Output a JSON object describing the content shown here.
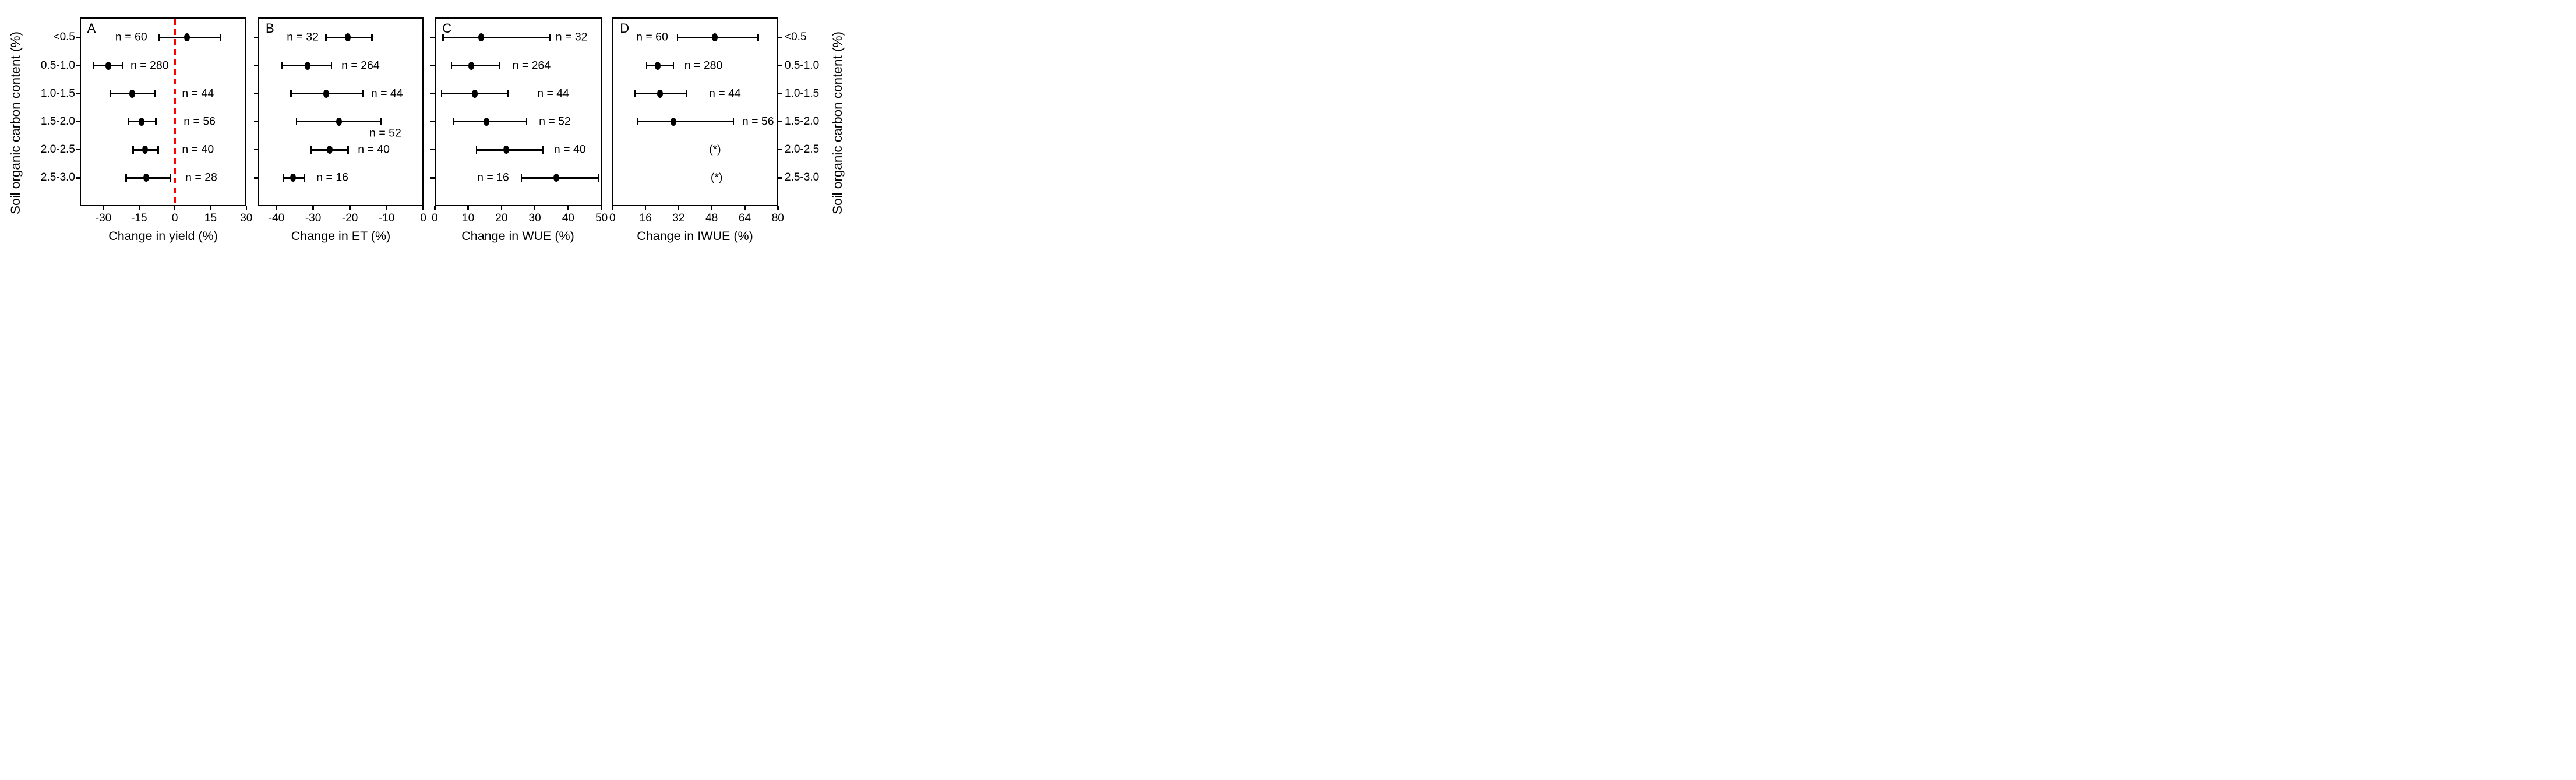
{
  "figure": {
    "y_axis_title_left": "Soil organic carbon content (%)",
    "y_axis_title_right": "Soil organic carbon content (%)",
    "categories": [
      "<0.5",
      "0.5-1.0",
      "1.0-1.5",
      "1.5-2.0",
      "2.0-2.5",
      "2.5-3.0"
    ],
    "colors": {
      "marker": "#000000",
      "text": "#000000",
      "frame": "#000000",
      "zero_line": "#ff0000",
      "background": "#ffffff"
    }
  },
  "chart_data": [
    {
      "type": "scatter",
      "panel": "A",
      "xlabel": "Change in yield (%)",
      "xlim": [
        -40,
        30
      ],
      "xticks": [
        -30,
        -15,
        0,
        15,
        30
      ],
      "zero_line": true,
      "categories": [
        "<0.5",
        "0.5-1.0",
        "1.0-1.5",
        "1.5-2.0",
        "2.0-2.5",
        "2.5-3.0"
      ],
      "points": [
        {
          "category": "<0.5",
          "n_label": "n = 60",
          "value": 5,
          "ci_low": -6.5,
          "ci_high": 19,
          "label_frac": 0.31
        },
        {
          "category": "0.5-1.0",
          "n_label": "n = 280",
          "value": -28,
          "ci_low": -34,
          "ci_high": -22,
          "label_frac": 0.42
        },
        {
          "category": "1.0-1.5",
          "n_label": "n = 44",
          "value": -18,
          "ci_low": -27,
          "ci_high": -8.5,
          "label_frac": 0.71
        },
        {
          "category": "1.5-2.0",
          "n_label": "n = 56",
          "value": -14,
          "ci_low": -19.5,
          "ci_high": -8,
          "label_frac": 0.72
        },
        {
          "category": "2.0-2.5",
          "n_label": "n = 40",
          "value": -12.5,
          "ci_low": -17.5,
          "ci_high": -7,
          "label_frac": 0.71
        },
        {
          "category": "2.5-3.0",
          "n_label": "n = 28",
          "value": -12,
          "ci_low": -20.5,
          "ci_high": -2,
          "label_frac": 0.73
        }
      ]
    },
    {
      "type": "scatter",
      "panel": "B",
      "xlabel": "Change in ET (%)",
      "xlim": [
        -45,
        0
      ],
      "xticks": [
        -40,
        -30,
        -20,
        -10,
        0
      ],
      "zero_line": false,
      "categories": [
        "<0.5",
        "0.5-1.0",
        "1.0-1.5",
        "1.5-2.0",
        "2.0-2.5",
        "2.5-3.0"
      ],
      "points": [
        {
          "category": "<0.5",
          "n_label": "n = 32",
          "value": -20.5,
          "ci_low": -26.5,
          "ci_high": -14,
          "label_frac": 0.27
        },
        {
          "category": "0.5-1.0",
          "n_label": "n = 264",
          "value": -31.5,
          "ci_low": -38.5,
          "ci_high": -25,
          "label_frac": 0.62
        },
        {
          "category": "1.0-1.5",
          "n_label": "n = 44",
          "value": -26.5,
          "ci_low": -36,
          "ci_high": -16.5,
          "label_frac": 0.78
        },
        {
          "category": "1.5-2.0",
          "n_label": "n = 52",
          "value": -23,
          "ci_low": -34.5,
          "ci_high": -11.5,
          "label_frac": 0.77,
          "label_dy_frac": 0.42
        },
        {
          "category": "2.0-2.5",
          "n_label": "n = 40",
          "value": -25.5,
          "ci_low": -30.5,
          "ci_high": -20.5,
          "label_frac": 0.7
        },
        {
          "category": "2.5-3.0",
          "n_label": "n = 16",
          "value": -35.5,
          "ci_low": -38,
          "ci_high": -32.5,
          "label_frac": 0.45
        }
      ]
    },
    {
      "type": "scatter",
      "panel": "C",
      "xlabel": "Change in WUE (%)",
      "xlim": [
        0,
        50
      ],
      "xticks": [
        0,
        10,
        20,
        30,
        40,
        50
      ],
      "zero_line": false,
      "categories": [
        "<0.5",
        "0.5-1.0",
        "1.0-1.5",
        "1.5-2.0",
        "2.0-2.5",
        "2.5-3.0"
      ],
      "points": [
        {
          "category": "<0.5",
          "n_label": "n = 32",
          "value": 14,
          "ci_low": 2.5,
          "ci_high": 34.5,
          "label_frac": 0.82
        },
        {
          "category": "0.5-1.0",
          "n_label": "n = 264",
          "value": 11,
          "ci_low": 5,
          "ci_high": 19.5,
          "label_frac": 0.58
        },
        {
          "category": "1.0-1.5",
          "n_label": "n = 44",
          "value": 12,
          "ci_low": 2,
          "ci_high": 22,
          "label_frac": 0.71
        },
        {
          "category": "1.5-2.0",
          "n_label": "n = 52",
          "value": 15.5,
          "ci_low": 5.5,
          "ci_high": 27.5,
          "label_frac": 0.72
        },
        {
          "category": "2.0-2.5",
          "n_label": "n = 40",
          "value": 21.5,
          "ci_low": 12.5,
          "ci_high": 32.5,
          "label_frac": 0.81
        },
        {
          "category": "2.5-3.0",
          "n_label": "n = 16",
          "value": 36.5,
          "ci_low": 26,
          "ci_high": 49,
          "label_frac": 0.35
        }
      ]
    },
    {
      "type": "scatter",
      "panel": "D",
      "xlabel": "Change in IWUE (%)",
      "xlim": [
        0,
        80
      ],
      "xticks": [
        0,
        16,
        32,
        48,
        64,
        80
      ],
      "zero_line": false,
      "categories": [
        "<0.5",
        "0.5-1.0",
        "1.0-1.5",
        "1.5-2.0",
        "2.0-2.5",
        "2.5-3.0"
      ],
      "points": [
        {
          "category": "<0.5",
          "n_label": "n = 60",
          "value": 49.5,
          "ci_low": 31.5,
          "ci_high": 70.5,
          "label_frac": 0.24
        },
        {
          "category": "0.5-1.0",
          "n_label": "n = 280",
          "value": 22,
          "ci_low": 16.5,
          "ci_high": 29.5,
          "label_frac": 0.55
        },
        {
          "category": "1.0-1.5",
          "n_label": "n = 44",
          "value": 23,
          "ci_low": 11,
          "ci_high": 36,
          "label_frac": 0.68
        },
        {
          "category": "1.5-2.0",
          "n_label": "n = 56",
          "value": 29.5,
          "ci_low": 12,
          "ci_high": 58.5,
          "label_frac": 0.88
        },
        {
          "category": "2.0-2.5",
          "n_label": "(*)",
          "value": null,
          "ci_low": null,
          "ci_high": null,
          "label_frac": 0.62
        },
        {
          "category": "2.5-3.0",
          "n_label": "(*)",
          "value": null,
          "ci_low": null,
          "ci_high": null,
          "label_frac": 0.63
        }
      ]
    }
  ]
}
